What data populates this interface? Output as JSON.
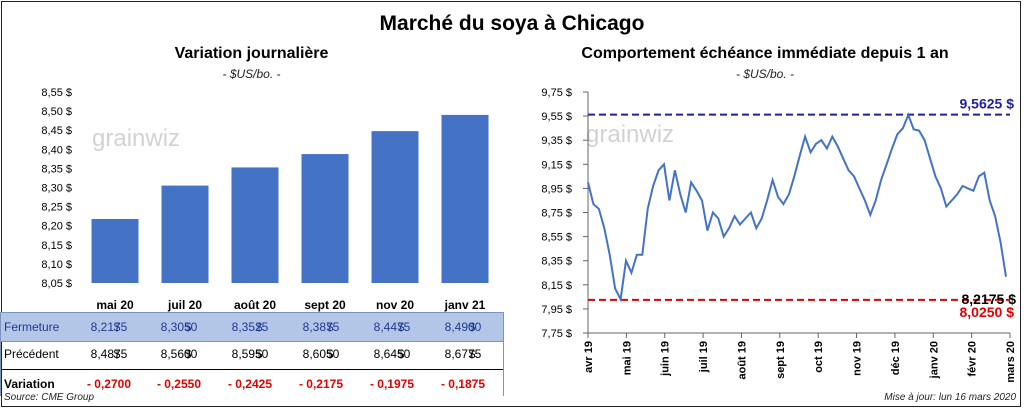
{
  "title": "Marché du soya à Chicago",
  "left": {
    "subtitle": "Variation journalière",
    "unit": "- $US/bo. -",
    "watermark": "grainwiz"
  },
  "right": {
    "subtitle": "Comportement échéance immédiate depuis 1 an",
    "unit": "- $US/bo. -",
    "watermark": "grainwiz",
    "max_label": "9,5625 $",
    "min_label": "8,0250 $",
    "last_label": "8,2175 $"
  },
  "table": {
    "row_labels": [
      "Fermeture",
      "Précédent",
      "Variation"
    ],
    "fermeture": [
      "8,2175",
      "8,3050",
      "8,3525",
      "8,3875",
      "8,4475",
      "8,4900"
    ],
    "precedent": [
      "8,4875",
      "8,5600",
      "8,5950",
      "8,6050",
      "8,6450",
      "8,6775"
    ],
    "variation": [
      "- 0,2700",
      "- 0,2550",
      "- 0,2425",
      "- 0,2175",
      "- 0,1975",
      "- 0,1875"
    ],
    "currency": "$"
  },
  "footer": {
    "source": "Source: CME Group",
    "updated": "Mise à jour: lun 16 mars 2020"
  },
  "colors": {
    "bar": "#4472c4",
    "line": "#4472c4",
    "max_line": "#1f1fa0",
    "min_line": "#e00000",
    "table_highlight": "#b4c6e7"
  },
  "chart_data": [
    {
      "type": "bar",
      "title": "Variation journalière",
      "categories": [
        "mai 20",
        "juil 20",
        "août 20",
        "sept 20",
        "nov 20",
        "janv 21"
      ],
      "values": [
        8.2175,
        8.305,
        8.3525,
        8.3875,
        8.4475,
        8.49
      ],
      "ylim": [
        8.05,
        8.55
      ],
      "yticks": [
        "8,05 $",
        "8,10 $",
        "8,15 $",
        "8,20 $",
        "8,25 $",
        "8,30 $",
        "8,35 $",
        "8,40 $",
        "8,45 $",
        "8,50 $",
        "8,55 $"
      ],
      "grid": false
    },
    {
      "type": "line",
      "title": "Comportement échéance immédiate depuis 1 an",
      "ylim": [
        7.75,
        9.75
      ],
      "yticks": [
        "7,75 $",
        "7,95 $",
        "8,15 $",
        "8,35 $",
        "8,55 $",
        "8,75 $",
        "8,95 $",
        "9,15 $",
        "9,35 $",
        "9,55 $",
        "9,75 $"
      ],
      "xticks": [
        "avr 19",
        "mai 19",
        "juin 19",
        "juil 19",
        "août 19",
        "sept 19",
        "oct 19",
        "nov 19",
        "déc 19",
        "janv 20",
        "févr 20",
        "mars 20"
      ],
      "reference_lines": [
        {
          "label": "9,5625 $",
          "value": 9.5625
        },
        {
          "label": "8,0250 $",
          "value": 8.025
        }
      ],
      "series": [
        {
          "values": [
            9.0,
            8.82,
            8.78,
            8.62,
            8.4,
            8.12,
            8.03,
            8.35,
            8.25,
            8.4,
            8.4,
            8.78,
            8.97,
            9.1,
            9.15,
            8.85,
            9.1,
            8.9,
            8.75,
            9.0,
            8.93,
            8.85,
            8.6,
            8.75,
            8.7,
            8.55,
            8.62,
            8.72,
            8.65,
            8.7,
            8.75,
            8.62,
            8.7,
            8.85,
            9.02,
            8.88,
            8.82,
            8.9,
            9.05,
            9.22,
            9.38,
            9.25,
            9.32,
            9.35,
            9.28,
            9.38,
            9.3,
            9.2,
            9.1,
            9.05,
            8.95,
            8.85,
            8.73,
            8.85,
            9.02,
            9.15,
            9.28,
            9.4,
            9.45,
            9.56,
            9.44,
            9.43,
            9.35,
            9.2,
            9.05,
            8.95,
            8.8,
            8.85,
            8.9,
            8.97,
            8.95,
            8.93,
            9.05,
            9.08,
            8.85,
            8.72,
            8.5,
            8.2175
          ]
        }
      ]
    }
  ]
}
